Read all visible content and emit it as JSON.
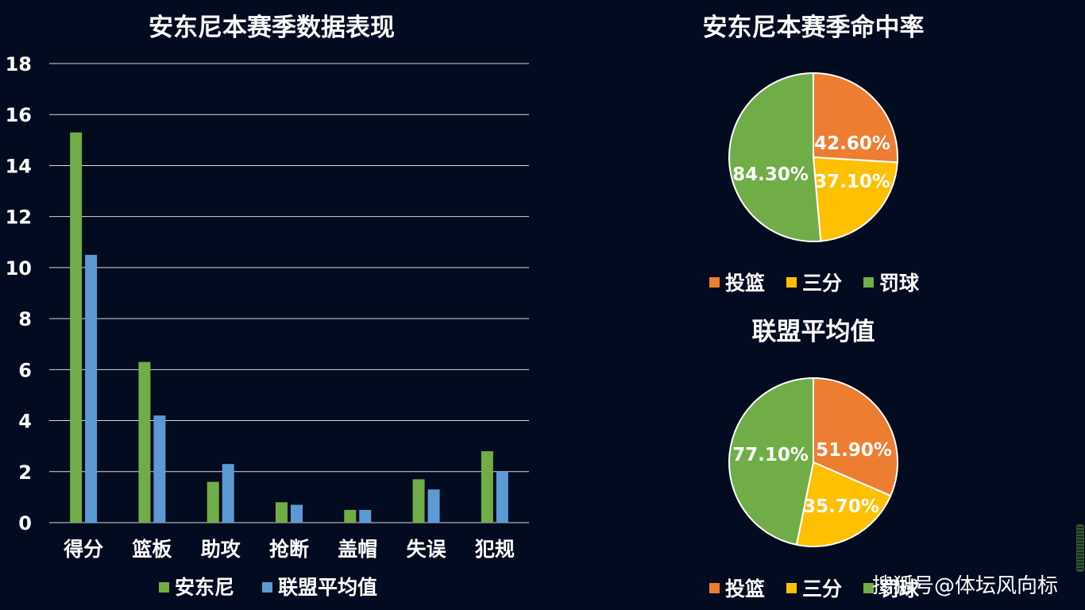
{
  "colors": {
    "background": "#020b1f",
    "anthony": "#70ad47",
    "league": "#5b9bd5",
    "fg_pct": "#ed7d31",
    "three_pct": "#ffc000",
    "ft_pct": "#70ad47",
    "gridline": "#d9d9d9",
    "text": "#ffffff"
  },
  "watermark": "搜狐号@体坛风向标",
  "chart_data": [
    {
      "type": "bar",
      "title": "安东尼本赛季数据表现",
      "categories": [
        "得分",
        "篮板",
        "助攻",
        "抢断",
        "盖帽",
        "失误",
        "犯规"
      ],
      "series": [
        {
          "name": "安东尼",
          "values": [
            15.3,
            6.3,
            1.6,
            0.8,
            0.5,
            1.7,
            2.8
          ]
        },
        {
          "name": "联盟平均值",
          "values": [
            10.5,
            4.2,
            2.3,
            0.7,
            0.5,
            1.3,
            2.0
          ]
        }
      ],
      "ylim": [
        0,
        18
      ],
      "yticks": [
        0,
        2,
        4,
        6,
        8,
        10,
        12,
        14,
        16,
        18
      ],
      "grid": true,
      "legend": "bottom"
    },
    {
      "type": "pie",
      "title": "安东尼本赛季命中率",
      "labels": [
        "投篮",
        "三分",
        "罚球"
      ],
      "values": [
        42.6,
        37.1,
        84.3
      ],
      "data_labels": [
        "42.60%",
        "37.10%",
        "84.30%"
      ],
      "legend": "bottom"
    },
    {
      "type": "pie",
      "title": "联盟平均值",
      "labels": [
        "投篮",
        "三分",
        "罚球"
      ],
      "values": [
        51.9,
        35.7,
        77.1
      ],
      "data_labels": [
        "51.90%",
        "35.70%",
        "77.10%"
      ],
      "legend": "bottom"
    }
  ]
}
